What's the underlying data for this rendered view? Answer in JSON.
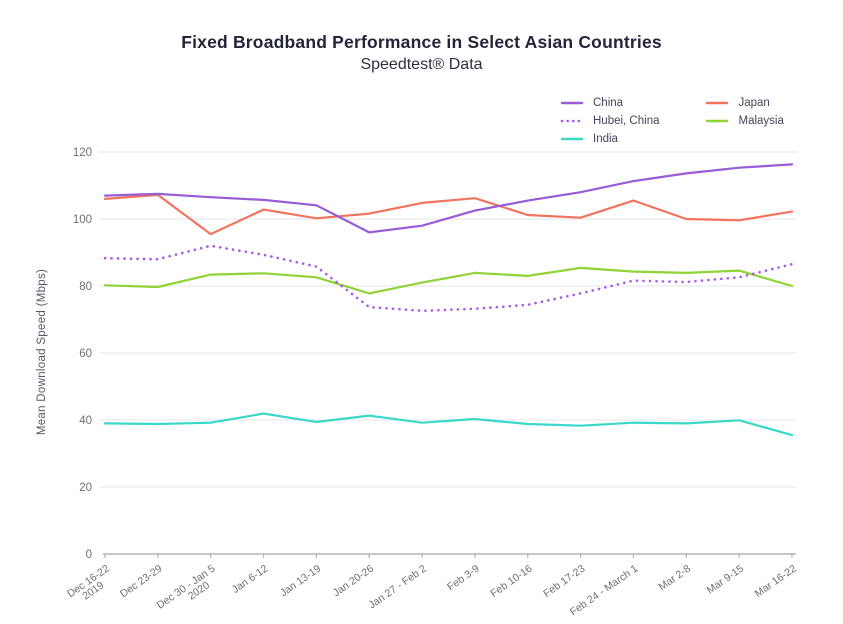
{
  "header": {
    "title": "Fixed Broadband Performance in Select Asian Countries",
    "subtitle": "Speedtest® Data"
  },
  "chart_data": {
    "type": "line",
    "title": "Fixed Broadband Performance in Select Asian Countries",
    "subtitle": "Speedtest® Data",
    "xlabel": "",
    "ylabel": "Mean Download Speed (Mbps)",
    "ylim": [
      0,
      120
    ],
    "yticks": [
      0,
      20,
      40,
      60,
      80,
      100,
      120
    ],
    "grid": true,
    "legend_position": "top-right",
    "categories": [
      "Dec 16-22\n2019",
      "Dec 23-29",
      "Dec 30 - Jan 5\n2020",
      "Jan 6-12",
      "Jan 13-19",
      "Jan 20-26",
      "Jan 27 - Feb 2",
      "Feb 3-9",
      "Feb 10-16",
      "Feb 17-23",
      "Feb 24 - March 1",
      "Mar 2-8",
      "Mar 9-15",
      "Mar 16-22"
    ],
    "series": [
      {
        "name": "China",
        "color": "#985CD6",
        "style": "solid",
        "values": [
          107.0,
          107.5,
          106.5,
          105.7,
          104.1,
          96.0,
          98.0,
          102.5,
          105.5,
          108.0,
          111.3,
          113.6,
          115.3,
          116.3
        ]
      },
      {
        "name": "Hubei, China",
        "color": "#A957E8",
        "style": "dotted",
        "values": [
          88.3,
          88.0,
          92.0,
          89.3,
          85.8,
          73.7,
          72.6,
          73.2,
          74.4,
          77.8,
          81.6,
          81.2,
          82.6,
          86.5
        ]
      },
      {
        "name": "India",
        "color": "#38D9C8",
        "style": "solid",
        "values": [
          39.0,
          38.8,
          39.2,
          41.9,
          39.4,
          41.3,
          39.2,
          40.3,
          38.8,
          38.3,
          39.2,
          39.0,
          39.9,
          35.5
        ]
      },
      {
        "name": "Japan",
        "color": "#F3745C",
        "style": "solid",
        "values": [
          106.0,
          107.2,
          95.5,
          102.8,
          100.2,
          101.6,
          104.8,
          106.2,
          101.2,
          100.4,
          105.5,
          100.0,
          99.6,
          102.2
        ]
      },
      {
        "name": "Malaysia",
        "color": "#8FD336",
        "style": "solid",
        "values": [
          80.2,
          79.7,
          83.4,
          83.8,
          82.6,
          77.8,
          81.0,
          83.9,
          83.0,
          85.4,
          84.3,
          83.9,
          84.6,
          80.0
        ]
      }
    ],
    "draw_order": [
      "Japan",
      "Malaysia",
      "India",
      "Hubei, China",
      "China"
    ],
    "axis_colors": {
      "grid": "#ededf2",
      "axis_line": "#b3b3bc",
      "tick_text": "#6e6e79"
    }
  }
}
